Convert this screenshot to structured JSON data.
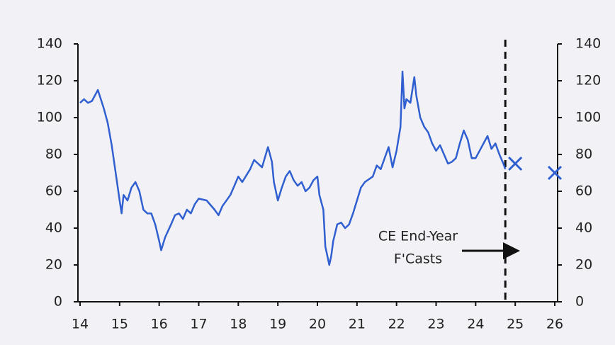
{
  "chart_data": {
    "type": "line",
    "x": [
      14.0,
      14.1,
      14.2,
      14.3,
      14.45,
      14.6,
      14.7,
      14.8,
      14.9,
      15.0,
      15.05,
      15.1,
      15.2,
      15.3,
      15.4,
      15.5,
      15.6,
      15.7,
      15.8,
      15.9,
      16.0,
      16.05,
      16.15,
      16.3,
      16.4,
      16.5,
      16.6,
      16.7,
      16.8,
      16.9,
      17.0,
      17.2,
      17.4,
      17.5,
      17.6,
      17.8,
      17.9,
      18.0,
      18.1,
      18.3,
      18.4,
      18.5,
      18.6,
      18.75,
      18.85,
      18.9,
      19.0,
      19.1,
      19.2,
      19.3,
      19.4,
      19.5,
      19.6,
      19.7,
      19.8,
      19.9,
      20.0,
      20.05,
      20.15,
      20.2,
      20.3,
      20.35,
      20.4,
      20.5,
      20.6,
      20.7,
      20.8,
      20.9,
      21.0,
      21.1,
      21.2,
      21.4,
      21.5,
      21.6,
      21.7,
      21.8,
      21.9,
      22.0,
      22.1,
      22.15,
      22.2,
      22.25,
      22.35,
      22.45,
      22.5,
      22.6,
      22.7,
      22.8,
      22.9,
      23.0,
      23.1,
      23.2,
      23.3,
      23.4,
      23.5,
      23.6,
      23.7,
      23.8,
      23.9,
      24.0,
      24.1,
      24.2,
      24.3,
      24.4,
      24.5,
      24.6,
      24.7,
      24.75
    ],
    "series": [
      {
        "color": "#2f5fd0",
        "values": [
          108,
          110,
          108,
          109,
          115,
          105,
          97,
          85,
          70,
          55,
          48,
          58,
          55,
          62,
          65,
          60,
          50,
          48,
          48,
          42,
          33,
          28,
          35,
          42,
          47,
          48,
          45,
          50,
          48,
          53,
          56,
          55,
          50,
          47,
          52,
          58,
          63,
          68,
          65,
          72,
          77,
          75,
          73,
          84,
          76,
          65,
          55,
          62,
          68,
          71,
          66,
          63,
          65,
          60,
          62,
          66,
          68,
          58,
          50,
          30,
          20,
          25,
          33,
          42,
          43,
          40,
          42,
          48,
          55,
          62,
          65,
          68,
          74,
          72,
          78,
          84,
          73,
          82,
          95,
          125,
          105,
          110,
          108,
          122,
          112,
          100,
          95,
          92,
          86,
          82,
          85,
          80,
          75,
          76,
          78,
          86,
          93,
          88,
          78,
          78,
          82,
          86,
          90,
          83,
          86,
          80,
          75,
          72
        ]
      }
    ],
    "forecast": {
      "x": [
        25,
        26
      ],
      "values": [
        75,
        70
      ],
      "color": "#2f5fd0"
    },
    "vline": 24.75,
    "annotation": [
      "CE End-Year",
      "F'Casts"
    ],
    "xlim": [
      14,
      26
    ],
    "xticks": [
      14,
      15,
      16,
      17,
      18,
      19,
      20,
      21,
      22,
      23,
      24,
      25,
      26
    ],
    "ylim": [
      0,
      140
    ],
    "yticks": [
      0,
      20,
      40,
      60,
      80,
      100,
      120,
      140
    ],
    "y2lim": [
      0,
      140
    ],
    "y2ticks": [
      0,
      20,
      40,
      60,
      80,
      100,
      120,
      140
    ]
  }
}
